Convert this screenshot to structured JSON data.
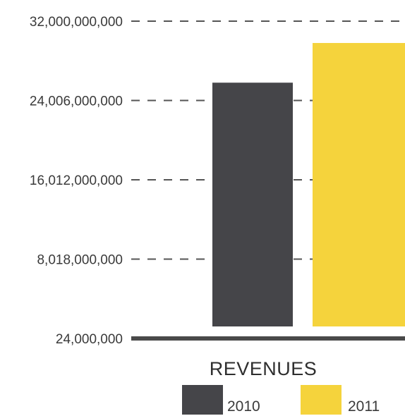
{
  "chart_data": {
    "type": "bar",
    "categories": [
      "REVENUES"
    ],
    "series": [
      {
        "name": "2010",
        "values": [
          25800000000
        ],
        "color": "#454549"
      },
      {
        "name": "2011",
        "values": [
          29800000000
        ],
        "color": "#f5d33c"
      }
    ],
    "title": "",
    "xlabel": "",
    "ylabel": "",
    "ylim": [
      24000000,
      32000000000
    ],
    "yticks": [
      {
        "value": 32000000000,
        "label": "32,000,000,000"
      },
      {
        "value": 24006000000,
        "label": "24,006,000,000"
      },
      {
        "value": 16012000000,
        "label": "16,012,000,000"
      },
      {
        "value": 8018000000,
        "label": "8,018,000,000"
      },
      {
        "value": 24000000,
        "label": "24,000,000"
      }
    ],
    "grid": "dashed horizontal",
    "legend": "bottom"
  }
}
